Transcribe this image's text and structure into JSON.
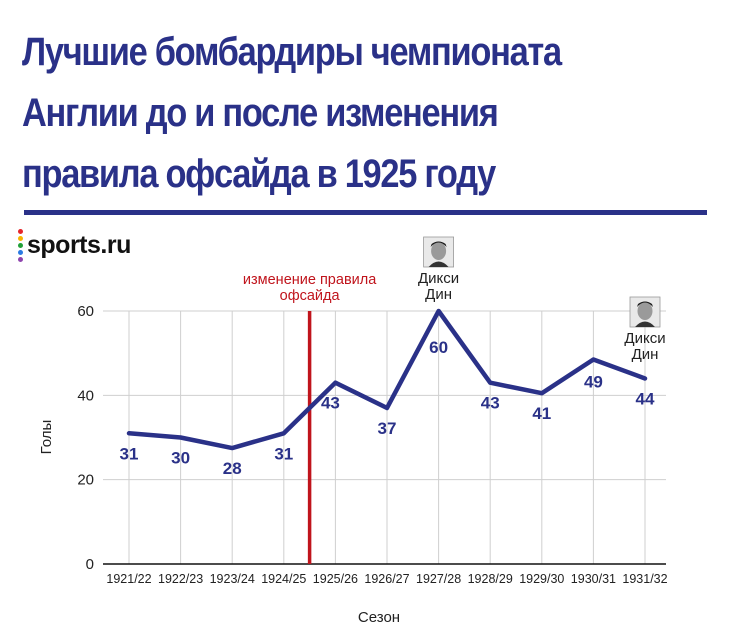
{
  "title": "Лучшие бомбардиры чемпионата Англии до и после изменения правила офсайда в 1925 году",
  "brand": {
    "logo_text": "sports.ru",
    "dot_colors": [
      "#e5252a",
      "#f7b500",
      "#21a038",
      "#2a7ae2",
      "#8e44ad"
    ]
  },
  "colors": {
    "title": "#2a3188",
    "line": "#2a3188",
    "marker": "#c0141c",
    "grid": "#cfcfcf"
  },
  "chart_data": {
    "type": "line",
    "title": "",
    "xlabel": "Сезон",
    "ylabel": "Голы",
    "ylim": [
      0,
      60
    ],
    "yticks": [
      0,
      20,
      40,
      60
    ],
    "grid": true,
    "categories": [
      "1921/22",
      "1922/23",
      "1923/24",
      "1924/25",
      "1925/26",
      "1926/27",
      "1927/28",
      "1928/29",
      "1929/30",
      "1930/31",
      "1931/32"
    ],
    "series": [
      {
        "values": [
          31,
          30,
          28,
          31,
          43,
          37,
          60,
          43,
          41,
          49,
          44
        ]
      }
    ],
    "data_labels": [
      "31",
      "30",
      "28",
      "31",
      "43",
      "37",
      "60",
      "43",
      "41",
      "49",
      "44"
    ],
    "plotted_values": [
      31,
      30,
      27.5,
      31,
      43,
      37,
      60,
      43,
      40.5,
      48.5,
      44
    ],
    "annotations": [
      {
        "text_lines": [
          "изменение правила",
          "офсайда"
        ],
        "between": [
          "1924/25",
          "1925/26"
        ],
        "kind": "vertical-line"
      },
      {
        "text_lines": [
          "Дикси",
          "Дин"
        ],
        "at": "1927/28",
        "icon": "player-portrait-icon"
      },
      {
        "text_lines": [
          "Дикси",
          "Дин"
        ],
        "at": "1931/32",
        "icon": "player-portrait-icon"
      }
    ]
  }
}
